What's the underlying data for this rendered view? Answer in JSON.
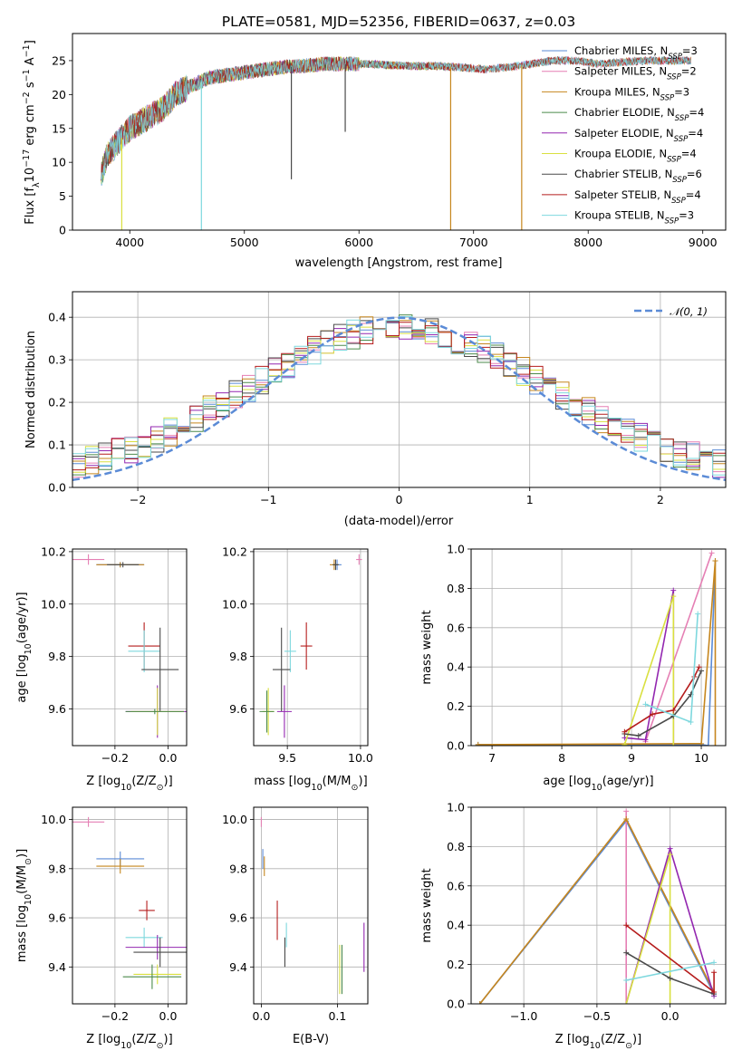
{
  "figure_title": "PLATE=0581, MJD=52356, FIBERID=0637, z=0.03",
  "colors": {
    "Chabrier MILES": "#5b8bd6",
    "Salpeter MILES": "#e57fb4",
    "Kroupa MILES": "#c6861e",
    "Chabrier ELODIE": "#4b8a4b",
    "Salpeter ELODIE": "#9327b0",
    "Kroupa ELODIE": "#d9e040",
    "Chabrier STELIB": "#4a4a4a",
    "Salpeter STELIB": "#b51c1c",
    "Kroupa STELIB": "#7ed8de"
  },
  "chart_data": [
    {
      "id": "spectrum",
      "type": "line",
      "xlabel": "wavelength [Angstrom, rest frame]",
      "ylabel": "Flux [f_λ10^-17 erg cm^-2 s^-1 A^-1]",
      "xlim": [
        3500,
        9200
      ],
      "ylim": [
        0,
        29
      ],
      "xticks": [
        4000,
        5000,
        6000,
        7000,
        8000,
        9000
      ],
      "yticks": [
        0,
        5,
        10,
        15,
        20,
        25
      ],
      "grid": false,
      "legend_position": "right",
      "legend": [
        {
          "name": "Chabrier MILES",
          "nssp": "3"
        },
        {
          "name": "Salpeter MILES",
          "nssp": "2"
        },
        {
          "name": "Kroupa MILES",
          "nssp": "3"
        },
        {
          "name": "Chabrier ELODIE",
          "nssp": "4"
        },
        {
          "name": "Salpeter ELODIE",
          "nssp": "4"
        },
        {
          "name": "Kroupa ELODIE",
          "nssp": "4"
        },
        {
          "name": "Chabrier STELIB",
          "nssp": "6"
        },
        {
          "name": "Salpeter STELIB",
          "nssp": "4"
        },
        {
          "name": "Kroupa STELIB",
          "nssp": "3"
        }
      ],
      "continuum": {
        "x": [
          3750,
          3800,
          3900,
          4000,
          4100,
          4200,
          4300,
          4400,
          4500,
          4700,
          4900,
          5100,
          5300,
          5500,
          5700,
          5900,
          6100,
          6300,
          6500,
          6700,
          6900,
          7100,
          7300,
          7500,
          7700,
          7900,
          8100,
          8300,
          8500,
          8700,
          8900
        ],
        "y": [
          8,
          11,
          13,
          15,
          16,
          17,
          18,
          20,
          21,
          22.5,
          23,
          23.5,
          24,
          24.2,
          24.5,
          24.5,
          24.5,
          24.3,
          24.2,
          24.2,
          24,
          23.7,
          24,
          24.5,
          25,
          25,
          24.5,
          24.8,
          25,
          25,
          25
        ]
      },
      "sharp_dips": [
        {
          "x": 3930,
          "y": 0
        },
        {
          "x": 4625,
          "y": 0
        },
        {
          "x": 5410,
          "y": 7.5
        },
        {
          "x": 5880,
          "y": 14.5
        },
        {
          "x": 6800,
          "y": 0
        },
        {
          "x": 7420,
          "y": 0
        }
      ]
    },
    {
      "id": "residuals",
      "type": "step",
      "xlabel": "(data-model)/error",
      "ylabel": "Normed distribution",
      "xlim": [
        -2.5,
        2.5
      ],
      "ylim": [
        0,
        0.46
      ],
      "xticks": [
        -2,
        -1,
        0,
        1,
        2
      ],
      "yticks": [
        0.0,
        0.1,
        0.2,
        0.3,
        0.4
      ],
      "grid": true,
      "legend_position": "top-right",
      "reference_label": "𝒩(0, 1)",
      "reference_curve": "standard normal, peak 0.40 at x=0"
    },
    {
      "id": "age_vs_Z",
      "type": "scatter",
      "xlabel": "Z [log10(Z/Z⊙)]",
      "ylabel": "age [log10(age/yr)]",
      "xlim": [
        -0.36,
        0.07
      ],
      "ylim": [
        9.46,
        10.21
      ],
      "xticks": [
        -0.2,
        0.0
      ],
      "yticks": [
        9.6,
        9.8,
        10.0,
        10.2
      ],
      "grid": true,
      "points": [
        {
          "s": "Salpeter MILES",
          "x": -0.3,
          "y": 10.17,
          "ex": 0.06,
          "ey": 0.02
        },
        {
          "s": "Chabrier MILES",
          "x": -0.18,
          "y": 10.15,
          "ex": 0.09,
          "ey": 0.01
        },
        {
          "s": "Kroupa MILES",
          "x": -0.18,
          "y": 10.15,
          "ex": 0.09,
          "ey": 0.01
        },
        {
          "s": "Chabrier STELIB",
          "x": -0.17,
          "y": 10.15,
          "ex": 0.06,
          "ey": 0.01
        },
        {
          "s": "Salpeter STELIB",
          "x": -0.09,
          "y": 9.84,
          "ex": 0.06,
          "ey": 0.09
        },
        {
          "s": "Kroupa STELIB",
          "x": -0.09,
          "y": 9.82,
          "ex": 0.06,
          "ey": 0.08
        },
        {
          "s": "Chabrier STELIB",
          "x": -0.03,
          "y": 9.75,
          "ex": 0.07,
          "ey": 0.16
        },
        {
          "s": "Salpeter ELODIE",
          "x": -0.04,
          "y": 9.59,
          "ex": 0.12,
          "ey": 0.1
        },
        {
          "s": "Kroupa ELODIE",
          "x": -0.04,
          "y": 9.59,
          "ex": 0.1,
          "ey": 0.09
        },
        {
          "s": "Chabrier ELODIE",
          "x": -0.05,
          "y": 9.59,
          "ex": 0.11,
          "ey": 0.01
        }
      ]
    },
    {
      "id": "age_vs_mass",
      "type": "scatter",
      "xlabel": "mass [log10(M/M⊙)]",
      "ylabel": "",
      "xlim": [
        9.27,
        10.05
      ],
      "ylim": [
        9.46,
        10.21
      ],
      "xticks": [
        9.5,
        10.0
      ],
      "yticks": [
        9.6,
        9.8,
        10.0,
        10.2
      ],
      "grid": true,
      "points": [
        {
          "s": "Salpeter MILES",
          "x": 9.99,
          "y": 10.17,
          "ex": 0.02,
          "ey": 0.02
        },
        {
          "s": "Chabrier MILES",
          "x": 9.84,
          "y": 10.15,
          "ex": 0.03,
          "ey": 0.02
        },
        {
          "s": "Kroupa MILES",
          "x": 9.82,
          "y": 10.15,
          "ex": 0.03,
          "ey": 0.02
        },
        {
          "s": "Chabrier STELIB",
          "x": 9.83,
          "y": 10.15,
          "ex": 0.02,
          "ey": 0.02
        },
        {
          "s": "Salpeter STELIB",
          "x": 9.63,
          "y": 9.84,
          "ex": 0.04,
          "ey": 0.09
        },
        {
          "s": "Kroupa STELIB",
          "x": 9.52,
          "y": 9.82,
          "ex": 0.04,
          "ey": 0.08
        },
        {
          "s": "Chabrier STELIB",
          "x": 9.46,
          "y": 9.75,
          "ex": 0.06,
          "ey": 0.16
        },
        {
          "s": "Salpeter ELODIE",
          "x": 9.48,
          "y": 9.59,
          "ex": 0.05,
          "ey": 0.1
        },
        {
          "s": "Kroupa ELODIE",
          "x": 9.37,
          "y": 9.59,
          "ex": 0.04,
          "ey": 0.09
        },
        {
          "s": "Chabrier ELODIE",
          "x": 9.36,
          "y": 9.59,
          "ex": 0.05,
          "ey": 0.08
        }
      ]
    },
    {
      "id": "weight_vs_age",
      "type": "line",
      "xlabel": "age [log10(age/yr)]",
      "ylabel": "mass weight",
      "xlim": [
        6.7,
        10.35
      ],
      "ylim": [
        0,
        1.0
      ],
      "xticks": [
        7,
        8,
        9,
        10
      ],
      "yticks": [
        0.0,
        0.2,
        0.4,
        0.6,
        0.8,
        1.0
      ],
      "grid": true,
      "series": [
        {
          "s": "Chabrier MILES",
          "x": [
            6.8,
            10.0,
            10.1,
            10.2
          ],
          "y": [
            0.005,
            0.005,
            0.0,
            0.94
          ]
        },
        {
          "s": "Salpeter MILES",
          "x": [
            9.2,
            10.15
          ],
          "y": [
            0.02,
            0.98
          ]
        },
        {
          "s": "Kroupa MILES",
          "x": [
            6.8,
            10.0,
            10.2,
            10.2
          ],
          "y": [
            0.005,
            0.01,
            0.94,
            0.0
          ]
        },
        {
          "s": "Salpeter ELODIE",
          "x": [
            8.9,
            9.2,
            9.6,
            9.6
          ],
          "y": [
            0.04,
            0.03,
            0.79,
            0.0
          ]
        },
        {
          "s": "Kroupa ELODIE",
          "x": [
            8.9,
            9.6,
            9.6
          ],
          "y": [
            0.005,
            0.76,
            0.0
          ]
        },
        {
          "s": "Chabrier STELIB",
          "x": [
            8.9,
            9.1,
            9.6,
            9.85,
            10.0
          ],
          "y": [
            0.06,
            0.05,
            0.15,
            0.26,
            0.38
          ]
        },
        {
          "s": "Salpeter STELIB",
          "x": [
            8.9,
            9.3,
            9.6,
            9.9,
            9.97
          ],
          "y": [
            0.07,
            0.16,
            0.18,
            0.35,
            0.4
          ]
        },
        {
          "s": "Kroupa STELIB",
          "x": [
            9.2,
            9.85,
            9.95
          ],
          "y": [
            0.21,
            0.12,
            0.67
          ]
        }
      ]
    },
    {
      "id": "mass_vs_Z",
      "type": "scatter",
      "xlabel": "Z [log10(Z/Z⊙)]",
      "ylabel": "mass [log10(M/M⊙)]",
      "xlim": [
        -0.36,
        0.07
      ],
      "ylim": [
        9.25,
        10.05
      ],
      "xticks": [
        -0.2,
        0.0
      ],
      "yticks": [
        9.4,
        9.6,
        9.8,
        10.0
      ],
      "grid": true,
      "points": [
        {
          "s": "Salpeter MILES",
          "x": -0.3,
          "y": 9.99,
          "ex": 0.06,
          "ey": 0.02
        },
        {
          "s": "Chabrier MILES",
          "x": -0.18,
          "y": 9.84,
          "ex": 0.09,
          "ey": 0.03
        },
        {
          "s": "Kroupa MILES",
          "x": -0.18,
          "y": 9.81,
          "ex": 0.09,
          "ey": 0.03
        },
        {
          "s": "Salpeter STELIB",
          "x": -0.08,
          "y": 9.63,
          "ex": 0.03,
          "ey": 0.04
        },
        {
          "s": "Kroupa STELIB",
          "x": -0.09,
          "y": 9.52,
          "ex": 0.07,
          "ey": 0.04
        },
        {
          "s": "Salpeter ELODIE",
          "x": -0.04,
          "y": 9.48,
          "ex": 0.12,
          "ey": 0.05
        },
        {
          "s": "Chabrier STELIB",
          "x": -0.03,
          "y": 9.46,
          "ex": 0.1,
          "ey": 0.06
        },
        {
          "s": "Kroupa ELODIE",
          "x": -0.04,
          "y": 9.37,
          "ex": 0.09,
          "ey": 0.04
        },
        {
          "s": "Chabrier ELODIE",
          "x": -0.06,
          "y": 9.36,
          "ex": 0.11,
          "ey": 0.05
        }
      ]
    },
    {
      "id": "mass_vs_EBV",
      "type": "scatter",
      "xlabel": "E(B-V)",
      "ylabel": "",
      "xlim": [
        -0.01,
        0.14
      ],
      "ylim": [
        9.25,
        10.05
      ],
      "xticks": [
        0.0,
        0.1
      ],
      "yticks": [
        9.4,
        9.6,
        9.8,
        10.0
      ],
      "grid": true,
      "points": [
        {
          "s": "Salpeter MILES",
          "x": 0.0,
          "y": 9.99,
          "ex": 0.0,
          "ey": 0.02
        },
        {
          "s": "Chabrier MILES",
          "x": 0.002,
          "y": 9.84,
          "ex": 0.0,
          "ey": 0.04
        },
        {
          "s": "Kroupa MILES",
          "x": 0.004,
          "y": 9.81,
          "ex": 0.0,
          "ey": 0.04
        },
        {
          "s": "Salpeter STELIB",
          "x": 0.021,
          "y": 9.59,
          "ex": 0.0,
          "ey": 0.08
        },
        {
          "s": "Kroupa STELIB",
          "x": 0.033,
          "y": 9.53,
          "ex": 0.0,
          "ey": 0.05
        },
        {
          "s": "Chabrier STELIB",
          "x": 0.031,
          "y": 9.46,
          "ex": 0.0,
          "ey": 0.06
        },
        {
          "s": "Kroupa ELODIE",
          "x": 0.103,
          "y": 9.39,
          "ex": 0.0,
          "ey": 0.1
        },
        {
          "s": "Chabrier ELODIE",
          "x": 0.106,
          "y": 9.39,
          "ex": 0.0,
          "ey": 0.1
        },
        {
          "s": "Salpeter ELODIE",
          "x": 0.135,
          "y": 9.48,
          "ex": 0.0,
          "ey": 0.1
        }
      ]
    },
    {
      "id": "weight_vs_Z",
      "type": "line",
      "xlabel": "Z [log10(Z/Z⊙)]",
      "ylabel": "mass weight",
      "xlim": [
        -1.36,
        0.38
      ],
      "ylim": [
        0,
        1.0
      ],
      "xticks": [
        -1.0,
        -0.5,
        0.0
      ],
      "yticks": [
        0.0,
        0.2,
        0.4,
        0.6,
        0.8,
        1.0
      ],
      "grid": true,
      "series": [
        {
          "s": "Chabrier MILES",
          "x": [
            -1.3,
            -0.3,
            0.3
          ],
          "y": [
            0.0,
            0.93,
            0.05
          ]
        },
        {
          "s": "Salpeter MILES",
          "x": [
            -0.3,
            -0.3
          ],
          "y": [
            0.0,
            0.98
          ]
        },
        {
          "s": "Kroupa MILES",
          "x": [
            -1.3,
            -0.3,
            0.3
          ],
          "y": [
            0.0,
            0.94,
            0.06
          ]
        },
        {
          "s": "Salpeter ELODIE",
          "x": [
            -0.3,
            0.0,
            0.3
          ],
          "y": [
            0.0,
            0.79,
            0.04
          ]
        },
        {
          "s": "Kroupa ELODIE",
          "x": [
            -0.3,
            0.0,
            0.0
          ],
          "y": [
            0.0,
            0.76,
            0.0
          ]
        },
        {
          "s": "Chabrier STELIB",
          "x": [
            -0.3,
            0.0,
            0.3
          ],
          "y": [
            0.26,
            0.13,
            0.05
          ]
        },
        {
          "s": "Salpeter STELIB",
          "x": [
            -0.3,
            0.3,
            0.3
          ],
          "y": [
            0.4,
            0.06,
            0.16
          ]
        },
        {
          "s": "Kroupa STELIB",
          "x": [
            -0.3,
            0.3
          ],
          "y": [
            0.12,
            0.21
          ]
        }
      ]
    }
  ]
}
